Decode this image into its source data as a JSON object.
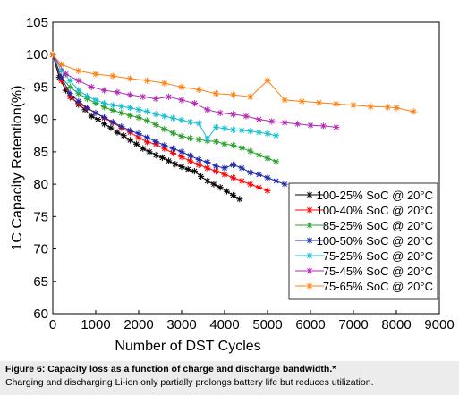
{
  "chart_data": {
    "type": "line",
    "xlabel": "Number of DST Cycles",
    "ylabel": "1C Capacity Retention(%)",
    "xlim": [
      0,
      9000
    ],
    "ylim": [
      60,
      105
    ],
    "xticks": [
      0,
      1000,
      2000,
      3000,
      4000,
      5000,
      6000,
      7000,
      8000,
      9000
    ],
    "yticks": [
      60,
      65,
      70,
      75,
      80,
      85,
      90,
      95,
      100,
      105
    ],
    "grid": false,
    "legend_position": "bottom-right",
    "series": [
      {
        "name": "100-25% SoC @ 20°C",
        "color": "#000000",
        "x": [
          0,
          150,
          300,
          450,
          600,
          750,
          900,
          1050,
          1200,
          1350,
          1500,
          1650,
          1800,
          1950,
          2100,
          2250,
          2400,
          2550,
          2700,
          2850,
          3000,
          3150,
          3300,
          3450,
          3600,
          3750,
          3900,
          4050,
          4200,
          4350
        ],
        "y": [
          100,
          96.5,
          94.5,
          93.3,
          92.3,
          91.5,
          90.5,
          90,
          89.3,
          88.7,
          88,
          87.5,
          86.8,
          86.2,
          85.5,
          85,
          84.5,
          84.1,
          83.6,
          83.1,
          82.7,
          82.3,
          82,
          81.2,
          80.5,
          80,
          79.5,
          78.9,
          78.3,
          77.7
        ]
      },
      {
        "name": "100-40% SoC @ 20°C",
        "color": "#ff0000",
        "x": [
          0,
          200,
          400,
          600,
          800,
          1000,
          1200,
          1400,
          1600,
          1800,
          2000,
          2200,
          2400,
          2600,
          2800,
          3000,
          3200,
          3400,
          3600,
          3800,
          4000,
          4200,
          4400,
          4600,
          4800,
          5000
        ],
        "y": [
          100,
          96,
          93.5,
          92.5,
          91.7,
          91,
          90.2,
          89.5,
          88.7,
          88,
          87.2,
          86.5,
          86.2,
          85.5,
          84.8,
          84.2,
          83.6,
          83,
          82.5,
          82,
          81.5,
          81,
          80.5,
          80,
          79.5,
          79
        ]
      },
      {
        "name": "85-25% SoC @ 20°C",
        "color": "#2ca02c",
        "x": [
          0,
          200,
          400,
          600,
          800,
          1000,
          1200,
          1400,
          1600,
          1800,
          2000,
          2200,
          2400,
          2600,
          2800,
          3000,
          3200,
          3400,
          3600,
          3800,
          4000,
          4200,
          4400,
          4600,
          4800,
          5000,
          5200
        ],
        "y": [
          100,
          96.5,
          95,
          94,
          93.2,
          92.5,
          91.9,
          91.4,
          91,
          90.6,
          90.3,
          89.8,
          89.2,
          88.5,
          87.9,
          87.4,
          87.1,
          86.9,
          86.7,
          86.6,
          86.2,
          86,
          85.6,
          85.1,
          84.5,
          84,
          83.5
        ]
      },
      {
        "name": "100-50% SoC @ 20°C",
        "color": "#1f2aa8",
        "x": [
          0,
          200,
          400,
          600,
          800,
          1000,
          1200,
          1400,
          1600,
          1800,
          2000,
          2200,
          2400,
          2600,
          2800,
          3000,
          3200,
          3400,
          3600,
          3800,
          4000,
          4200,
          4400,
          4600,
          4800,
          5000,
          5200,
          5400
        ],
        "y": [
          100,
          96.5,
          94,
          92.8,
          91.8,
          91,
          90.3,
          89.6,
          88.9,
          88.3,
          87.8,
          87.2,
          86.6,
          86,
          85.5,
          85,
          84.4,
          83.8,
          83.4,
          82.8,
          82.5,
          83,
          82.5,
          81.8,
          81.5,
          81,
          80.5,
          80
        ]
      },
      {
        "name": "75-25% SoC @ 20°C",
        "color": "#17becf",
        "x": [
          0,
          200,
          400,
          600,
          800,
          1000,
          1200,
          1400,
          1600,
          1800,
          2000,
          2200,
          2400,
          2600,
          2800,
          3000,
          3200,
          3400,
          3600,
          3800,
          4000,
          4200,
          4400,
          4600,
          4800,
          5000,
          5200
        ],
        "y": [
          100,
          97.5,
          96,
          94.5,
          93.6,
          93,
          92.5,
          92.2,
          92,
          91.8,
          91.5,
          91.2,
          90.8,
          90.5,
          90.2,
          89.9,
          89.6,
          89.4,
          87,
          88.8,
          88.6,
          88.4,
          88.3,
          88.2,
          88,
          87.8,
          87.5
        ]
      },
      {
        "name": "75-45% SoC @ 20°C",
        "color": "#b02ab0",
        "x": [
          0,
          300,
          600,
          900,
          1200,
          1500,
          1800,
          2100,
          2400,
          2700,
          3000,
          3300,
          3600,
          3900,
          4200,
          4500,
          4800,
          5100,
          5400,
          5700,
          6000,
          6300,
          6600
        ],
        "y": [
          100,
          97,
          96,
          95,
          94.5,
          94.2,
          93.8,
          93.5,
          93.2,
          93.5,
          93,
          92.5,
          91.5,
          91,
          90.8,
          90.5,
          90,
          89.7,
          89.5,
          89.3,
          89.1,
          89,
          88.8
        ]
      },
      {
        "name": "75-65% SoC @ 20°C",
        "color": "#ff7f0e",
        "x": [
          0,
          200,
          600,
          1000,
          1400,
          1800,
          2200,
          2600,
          3000,
          3400,
          3800,
          4200,
          4600,
          5000,
          5400,
          5800,
          6200,
          6600,
          7000,
          7400,
          7800,
          8000,
          8400
        ],
        "y": [
          100,
          98.5,
          97.5,
          97,
          96.7,
          96.3,
          96,
          95.6,
          95,
          94.6,
          94,
          93.8,
          93.5,
          96,
          93,
          92.8,
          92.6,
          92.4,
          92.2,
          92,
          91.9,
          91.8,
          91.2
        ]
      }
    ]
  },
  "caption": {
    "title": "Figure 6: Capacity loss as a function of charge and discharge bandwidth.*",
    "subtitle": "Charging and discharging Li-ion only partially prolongs battery life but reduces utilization."
  }
}
